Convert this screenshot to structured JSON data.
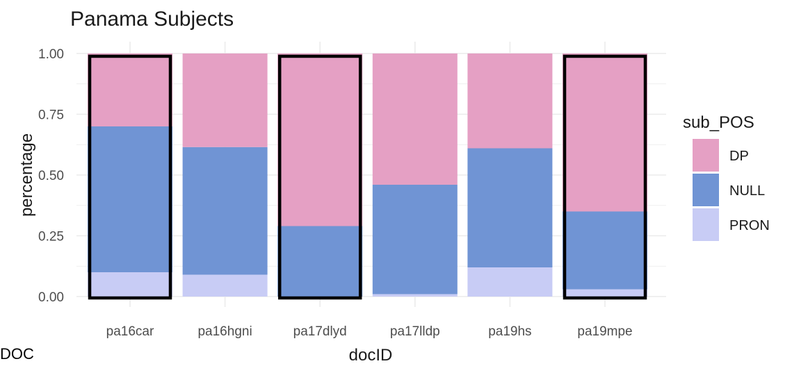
{
  "chart_data": {
    "type": "bar",
    "stacked": true,
    "title": "Panama Subjects",
    "xlabel": "docID",
    "ylabel": "percentage",
    "ylim": [
      0,
      1
    ],
    "yticks": [
      "0.00",
      "0.25",
      "0.50",
      "0.75",
      "1.00"
    ],
    "grid": true,
    "legend": {
      "title": "sub_POS",
      "position": "right"
    },
    "categories": [
      "pa16car",
      "pa16hgni",
      "pa17dlyd",
      "pa17lldp",
      "pa19hs",
      "pa19mpe"
    ],
    "series": [
      {
        "name": "PRON",
        "color": "#C8CCF5",
        "values": [
          0.1,
          0.09,
          0.0,
          0.01,
          0.12,
          0.03
        ]
      },
      {
        "name": "NULL",
        "color": "#7094D4",
        "values": [
          0.6,
          0.525,
          0.29,
          0.45,
          0.49,
          0.32
        ]
      },
      {
        "name": "DP",
        "color": "#E5A0C4",
        "values": [
          0.3,
          0.385,
          0.71,
          0.54,
          0.39,
          0.65
        ]
      }
    ],
    "legend_order": [
      "DP",
      "NULL",
      "PRON"
    ],
    "highlighted_categories": [
      "pa16car",
      "pa17dlyd",
      "pa19mpe"
    ]
  },
  "annotations": {
    "corner_text": "DOC"
  }
}
